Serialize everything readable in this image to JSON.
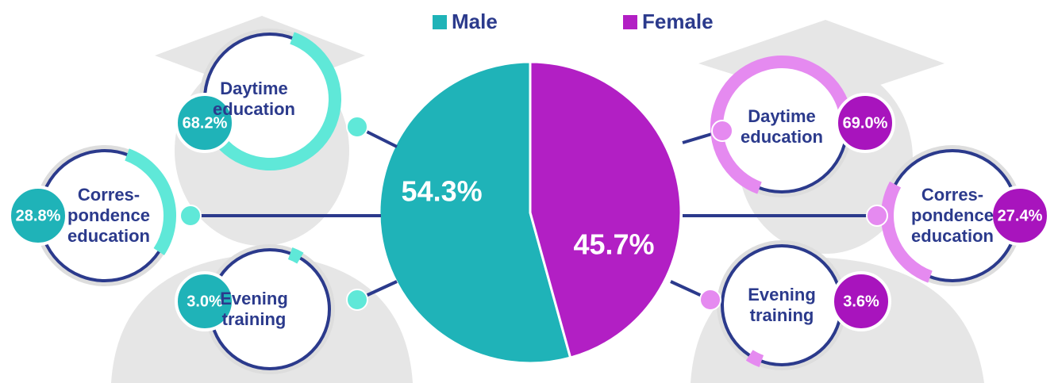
{
  "chart_data": [
    {
      "type": "pie",
      "categories": [
        "Male",
        "Female"
      ],
      "values": [
        54.3,
        45.7
      ],
      "value_labels": [
        "54.3%",
        "45.7%"
      ],
      "colors": [
        "#1fb3b8",
        "#b21fc4"
      ]
    },
    {
      "type": "gauge",
      "series_name": "Male",
      "categories": [
        "Daytime education",
        "Corres-pondence education",
        "Evening training"
      ],
      "values": [
        68.2,
        28.8,
        3.0
      ],
      "value_labels": [
        "68.2%",
        "28.8%",
        "3.0%"
      ],
      "color": "#1fb3b8",
      "arc_color": "#5fe8d8"
    },
    {
      "type": "gauge",
      "series_name": "Female",
      "categories": [
        "Daytime education",
        "Corres-pondence education",
        "Evening training"
      ],
      "values": [
        69.0,
        27.4,
        3.6
      ],
      "value_labels": [
        "69.0%",
        "27.4%",
        "3.6%"
      ],
      "color": "#a814bd",
      "arc_color": "#e58af0"
    }
  ]
}
